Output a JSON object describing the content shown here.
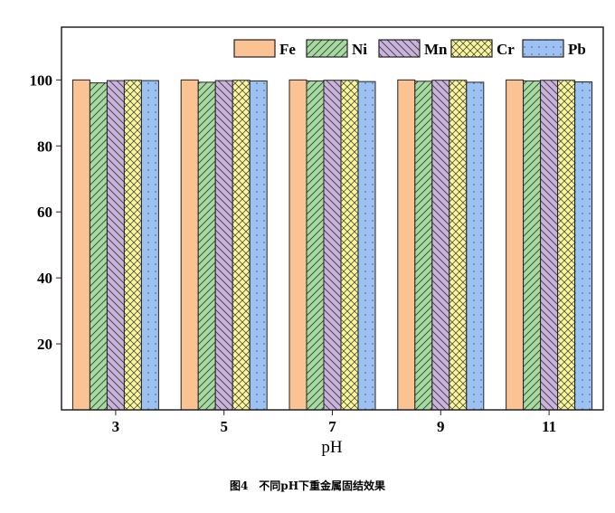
{
  "chart_data": {
    "type": "bar",
    "title": "",
    "xlabel": "pH",
    "ylabel": "",
    "categories": [
      "3",
      "5",
      "7",
      "9",
      "11"
    ],
    "ylim": [
      0,
      116
    ],
    "yticks": [
      20,
      40,
      60,
      80,
      100
    ],
    "grid": false,
    "legend_position": "top-right",
    "series": [
      {
        "name": "Fe",
        "values": [
          100,
          100,
          100,
          100,
          100
        ],
        "color": "#FBC393",
        "pattern": "solid"
      },
      {
        "name": "Ni",
        "values": [
          99.1,
          99.3,
          99.7,
          99.6,
          99.7
        ],
        "color": "#A6DBA0",
        "pattern": "forward-hatch"
      },
      {
        "name": "Mn",
        "values": [
          99.8,
          99.8,
          99.9,
          99.9,
          99.9
        ],
        "color": "#C9B3DD",
        "pattern": "back-hatch"
      },
      {
        "name": "Cr",
        "values": [
          99.9,
          99.9,
          99.9,
          99.9,
          99.9
        ],
        "color": "#F8F59A",
        "pattern": "crosshatch"
      },
      {
        "name": "Pb",
        "values": [
          99.8,
          99.7,
          99.5,
          99.3,
          99.4
        ],
        "color": "#9CC2F4",
        "pattern": "dots"
      }
    ]
  },
  "caption": "图4　不同pH下重金属固结效果"
}
